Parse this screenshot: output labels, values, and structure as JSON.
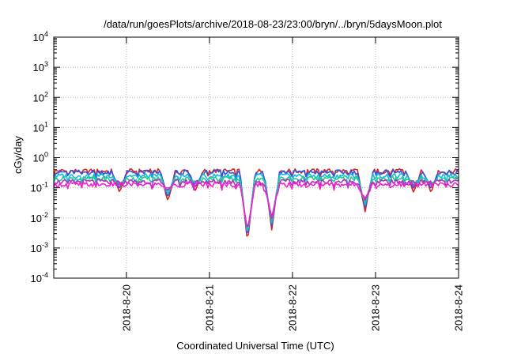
{
  "chart_data": {
    "type": "line",
    "title": "/data/run/goesPlots/archive/2018-08-23/23:00/bryn/../bryn/5daysMoon.plot",
    "xlabel": "Coordinated Universal Time (UTC)",
    "ylabel": "cGy/day",
    "yscale": "log",
    "ylim": [
      0.0001,
      10000
    ],
    "y_ticks": [
      {
        "value": 0.0001,
        "base": "10",
        "exp": "-4"
      },
      {
        "value": 0.001,
        "base": "10",
        "exp": "-3"
      },
      {
        "value": 0.01,
        "base": "10",
        "exp": "-2"
      },
      {
        "value": 0.1,
        "base": "10",
        "exp": "-1"
      },
      {
        "value": 1,
        "base": "10",
        "exp": "0"
      },
      {
        "value": 10,
        "base": "10",
        "exp": "1"
      },
      {
        "value": 100,
        "base": "10",
        "exp": "2"
      },
      {
        "value": 1000,
        "base": "10",
        "exp": "3"
      },
      {
        "value": 10000,
        "base": "10",
        "exp": "4"
      }
    ],
    "xlim": [
      "2018-08-19 03:00",
      "2018-08-24 00:00"
    ],
    "x_ticks": [
      "2018-8-20",
      "2018-8-21",
      "2018-8-22",
      "2018-8-23",
      "2018-8-24"
    ],
    "grid": true,
    "legend": "none",
    "series": [
      {
        "color": "#dd2222",
        "base": 0.36
      },
      {
        "color": "#3355dd",
        "base": 0.33
      },
      {
        "color": "#11bbdd",
        "base": 0.25
      },
      {
        "color": "#22cc88",
        "base": 0.2
      },
      {
        "color": "#aa33cc",
        "base": 0.16
      },
      {
        "color": "#ee22cc",
        "base": 0.13
      }
    ],
    "dips": [
      {
        "x": "2018-08-19 22:00",
        "min": 0.07
      },
      {
        "x": "2018-08-20 12:00",
        "min": 0.035
      },
      {
        "x": "2018-08-20 20:00",
        "min": 0.08
      },
      {
        "x": "2018-08-21 11:00",
        "min": 0.0015
      },
      {
        "x": "2018-08-21 18:00",
        "min": 0.004
      },
      {
        "x": "2018-08-22 21:00",
        "min": 0.016
      },
      {
        "x": "2018-08-23 11:00",
        "min": 0.07
      },
      {
        "x": "2018-08-23 16:00",
        "min": 0.07
      }
    ]
  }
}
